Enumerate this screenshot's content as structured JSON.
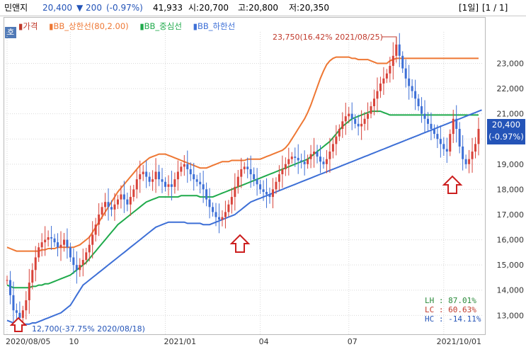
{
  "header": {
    "name": "민앤지",
    "price": "20,400",
    "change": "▼ 200",
    "change_pct": "(-0.97%)",
    "volume": "41,933",
    "open": "시:20,700",
    "high": "고:20,800",
    "low": "저:20,350",
    "period": "[1일]",
    "page": "[1 / 1]"
  },
  "corner_label": "호",
  "legend": [
    {
      "label": "가격",
      "color": "#c0392b"
    },
    {
      "label": "BB_상한선(80,2.00)",
      "color": "#ee7733"
    },
    {
      "label": "BB_중심선",
      "color": "#1faa4b"
    },
    {
      "label": "BB_하한선",
      "color": "#3d6fd6"
    }
  ],
  "price_tag": {
    "price": "20,400",
    "pct": "(-0.97%)"
  },
  "stats": [
    {
      "label": "LH :",
      "value": "87.01%",
      "color": "#2a8a3a"
    },
    {
      "label": "LC :",
      "value": "60.63%",
      "color": "#c0392b"
    },
    {
      "label": "HC :",
      "value": "-14.11%",
      "color": "#2454b8"
    }
  ],
  "annotations": {
    "max_label": "23,750(16.42% 2021/08/25)",
    "min_label": "12,700(-37.75% 2020/08/18)"
  },
  "chart_data": {
    "type": "line",
    "ylim": [
      12250,
      24250
    ],
    "y_ticks": [
      13000,
      14000,
      15000,
      16000,
      17000,
      18000,
      19000,
      20000,
      21000,
      22000,
      23000
    ],
    "y_tick_labels": [
      "13,000",
      "14,000",
      "15,000",
      "16,000",
      "17,000",
      "18,000",
      "19,000",
      "20,000",
      "21,000",
      "22,000",
      "23,000"
    ],
    "x_tick_labels": [
      "2020/08/05",
      "10",
      "2021/01",
      "04",
      "07",
      "2021/10/01"
    ],
    "x_tick_index": [
      0,
      20,
      50,
      80,
      108,
      138
    ],
    "series": [
      {
        "name": "가격",
        "color": "#c0392b",
        "values": [
          14400,
          13800,
          13200,
          13100,
          12900,
          13200,
          13600,
          14300,
          14800,
          15300,
          15700,
          15900,
          16000,
          16100,
          16050,
          15900,
          15700,
          15800,
          16000,
          15700,
          15300,
          15000,
          14800,
          15000,
          15200,
          15500,
          15800,
          16200,
          16600,
          17000,
          17300,
          17500,
          17300,
          17200,
          17400,
          17600,
          17800,
          17600,
          17400,
          17700,
          18000,
          18400,
          18600,
          18700,
          18500,
          18300,
          18400,
          18700,
          18400,
          18300,
          18100,
          18200,
          18100,
          18400,
          18700,
          18900,
          19000,
          18800,
          18600,
          18400,
          18300,
          18200,
          18000,
          17600,
          17300,
          17100,
          16900,
          16800,
          16900,
          17100,
          17400,
          17700,
          18100,
          18500,
          18800,
          18900,
          18800,
          18600,
          18400,
          18200,
          18000,
          17900,
          17800,
          17700,
          18000,
          18300,
          18600,
          18800,
          19000,
          19200,
          19300,
          19250,
          19150,
          19100,
          19000,
          19200,
          19400,
          19500,
          19300,
          19100,
          19000,
          19200,
          19500,
          19800,
          20100,
          20400,
          20700,
          20900,
          21000,
          20800,
          20600,
          20500,
          20600,
          20800,
          21000,
          21300,
          21600,
          21900,
          22200,
          22400,
          22600,
          22900,
          23300,
          23750,
          23300,
          22800,
          22400,
          22100,
          21900,
          21600,
          21300,
          21000,
          20800,
          20600,
          20400,
          20200,
          20000,
          19800,
          19600,
          19500,
          20200,
          20800,
          20400,
          19700,
          19200,
          19000,
          19200,
          19500,
          19800,
          20400
        ]
      },
      {
        "name": "BB_상한선(80,2.00)",
        "color": "#ee7733",
        "values": [
          15700,
          15650,
          15600,
          15550,
          15550,
          15550,
          15550,
          15550,
          15550,
          15550,
          15550,
          15600,
          15600,
          15650,
          15650,
          15650,
          15700,
          15700,
          15700,
          15700,
          15700,
          15700,
          15750,
          15800,
          15900,
          16000,
          16100,
          16300,
          16500,
          16700,
          16900,
          17100,
          17300,
          17500,
          17700,
          17900,
          18050,
          18200,
          18350,
          18500,
          18650,
          18800,
          18950,
          19050,
          19150,
          19250,
          19300,
          19350,
          19400,
          19400,
          19400,
          19350,
          19300,
          19250,
          19200,
          19150,
          19100,
          19050,
          19000,
          18950,
          18900,
          18850,
          18850,
          18850,
          18900,
          18950,
          19000,
          19050,
          19100,
          19100,
          19100,
          19150,
          19150,
          19150,
          19150,
          19150,
          19200,
          19200,
          19200,
          19200,
          19200,
          19250,
          19300,
          19350,
          19400,
          19450,
          19500,
          19550,
          19650,
          19800,
          20000,
          20200,
          20400,
          20600,
          20800,
          21050,
          21350,
          21700,
          22050,
          22400,
          22700,
          22950,
          23100,
          23200,
          23250,
          23250,
          23250,
          23250,
          23250,
          23200,
          23200,
          23150,
          23150,
          23150,
          23150,
          23100,
          23050,
          23000,
          23000,
          23000,
          23000,
          23100,
          23150,
          23200,
          23200,
          23200,
          23200,
          23200,
          23200,
          23200,
          23200,
          23200,
          23200,
          23200,
          23200,
          23200,
          23200,
          23200,
          23200,
          23200,
          23200,
          23200,
          23200,
          23200,
          23200,
          23200,
          23200,
          23200,
          23200,
          23200
        ]
      },
      {
        "name": "BB_중심선",
        "color": "#1faa4b",
        "values": [
          14200,
          14150,
          14100,
          14100,
          14100,
          14100,
          14100,
          14100,
          14150,
          14150,
          14200,
          14200,
          14250,
          14250,
          14300,
          14350,
          14400,
          14450,
          14500,
          14550,
          14600,
          14700,
          14800,
          14900,
          15000,
          15100,
          15250,
          15400,
          15550,
          15700,
          15850,
          16000,
          16150,
          16300,
          16450,
          16600,
          16700,
          16800,
          16900,
          17000,
          17100,
          17200,
          17300,
          17400,
          17500,
          17550,
          17600,
          17650,
          17700,
          17700,
          17700,
          17700,
          17700,
          17700,
          17700,
          17750,
          17750,
          17750,
          17750,
          17750,
          17750,
          17700,
          17700,
          17700,
          17700,
          17700,
          17750,
          17800,
          17850,
          17900,
          17950,
          18000,
          18050,
          18100,
          18150,
          18200,
          18250,
          18300,
          18350,
          18400,
          18450,
          18500,
          18550,
          18600,
          18650,
          18700,
          18750,
          18800,
          18850,
          18900,
          18950,
          19000,
          19050,
          19100,
          19150,
          19200,
          19300,
          19400,
          19500,
          19600,
          19700,
          19800,
          19900,
          20050,
          20200,
          20350,
          20500,
          20600,
          20700,
          20800,
          20850,
          20900,
          20950,
          21000,
          21050,
          21100,
          21100,
          21100,
          21100,
          21050,
          21000,
          20950,
          20950,
          20950,
          20950,
          20950,
          20950,
          20950,
          20950,
          20950,
          20950,
          20950,
          20950,
          20950,
          20950,
          20950,
          20950,
          20950,
          20950,
          20950,
          20950,
          20950,
          20950,
          20950,
          20950,
          20950,
          20950,
          20950,
          20950,
          20950
        ]
      },
      {
        "name": "BB_하한선",
        "color": "#3d6fd6",
        "values": [
          12800,
          12750,
          12700,
          12650,
          12650,
          12650,
          12650,
          12650,
          12700,
          12700,
          12750,
          12800,
          12850,
          12900,
          12950,
          13000,
          13050,
          13100,
          13200,
          13300,
          13400,
          13600,
          13800,
          14000,
          14200,
          14300,
          14400,
          14500,
          14600,
          14700,
          14800,
          14900,
          15000,
          15100,
          15200,
          15300,
          15400,
          15500,
          15600,
          15700,
          15800,
          15900,
          16000,
          16100,
          16200,
          16300,
          16400,
          16500,
          16550,
          16600,
          16650,
          16700,
          16700,
          16700,
          16700,
          16700,
          16700,
          16650,
          16650,
          16650,
          16650,
          16650,
          16600,
          16600,
          16600,
          16650,
          16700,
          16750,
          16800,
          16850,
          16900,
          16950,
          17000,
          17100,
          17200,
          17300,
          17400,
          17500,
          17550,
          17600,
          17650,
          17700,
          17750,
          17800,
          17850,
          17900,
          17950,
          18000,
          18050,
          18100,
          18150,
          18200,
          18250,
          18300,
          18350,
          18400,
          18450,
          18500,
          18550,
          18600,
          18650,
          18700,
          18750,
          18800,
          18850,
          18900,
          18950,
          19000,
          19050,
          19100,
          19150,
          19200,
          19250,
          19300,
          19350,
          19400,
          19450,
          19500,
          19550,
          19600,
          19650,
          19700,
          19750,
          19800,
          19850,
          19900,
          19950,
          20000,
          20050,
          20100,
          20150,
          20200,
          20250,
          20300,
          20350,
          20400,
          20450,
          20500,
          20550,
          20600,
          20650,
          20700,
          20750,
          20800,
          20850,
          20900,
          20950,
          21000,
          21050,
          21100,
          21150
        ]
      }
    ]
  }
}
